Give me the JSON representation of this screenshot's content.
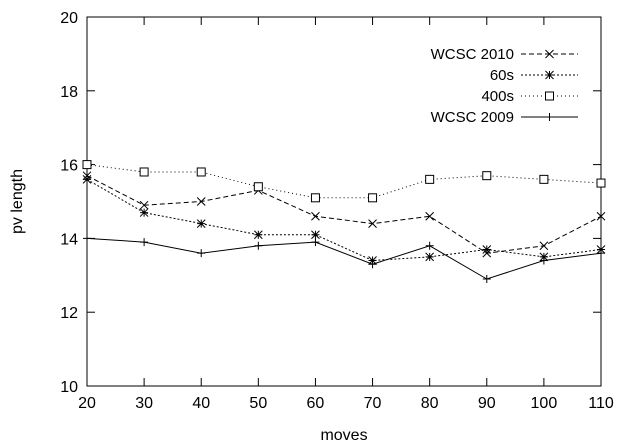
{
  "chart_data": {
    "type": "line",
    "xlabel": "moves",
    "ylabel": "pv length",
    "xlim": [
      20,
      110
    ],
    "ylim": [
      10,
      20
    ],
    "xticks": [
      20,
      30,
      40,
      50,
      60,
      70,
      80,
      90,
      100,
      110
    ],
    "yticks": [
      10,
      12,
      14,
      16,
      18,
      20
    ],
    "grid": false,
    "legend_position": "top-right",
    "x": [
      20,
      30,
      40,
      50,
      60,
      70,
      80,
      90,
      100,
      110
    ],
    "series": [
      {
        "name": "WCSC 2010",
        "marker": "x",
        "dash": "dashed",
        "values": [
          15.7,
          14.9,
          15.0,
          15.3,
          14.6,
          14.4,
          14.6,
          13.6,
          13.8,
          14.6
        ]
      },
      {
        "name": "60s",
        "marker": "asterisk",
        "dash": "dotted-fine",
        "values": [
          15.6,
          14.7,
          14.4,
          14.1,
          14.1,
          13.4,
          13.5,
          13.7,
          13.5,
          13.7
        ]
      },
      {
        "name": "400s",
        "marker": "square",
        "dash": "dotted",
        "values": [
          16.0,
          15.8,
          15.8,
          15.4,
          15.1,
          15.1,
          15.6,
          15.7,
          15.6,
          15.5
        ]
      },
      {
        "name": "WCSC 2009",
        "marker": "plus",
        "dash": "solid",
        "values": [
          14.0,
          13.9,
          13.6,
          13.8,
          13.9,
          13.3,
          13.8,
          12.9,
          13.4,
          13.6
        ]
      }
    ]
  }
}
